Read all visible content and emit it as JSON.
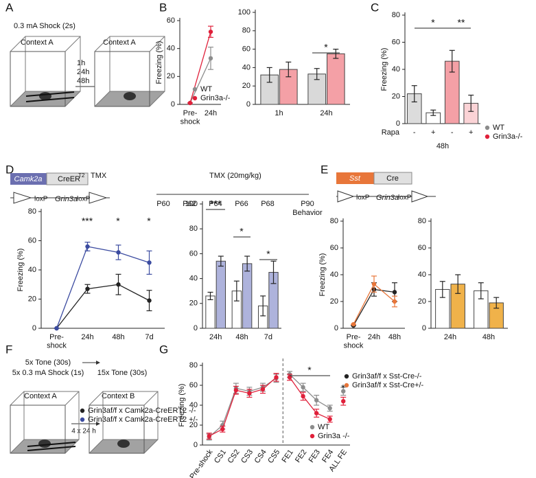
{
  "panel_labels": [
    "A",
    "B",
    "C",
    "D",
    "E",
    "F",
    "G"
  ],
  "schematic_a": {
    "shock": "0.3 mA Shock (2s)",
    "context_left": "Context A",
    "context_right": "Context A",
    "times": [
      "1h",
      "24h",
      "48h"
    ]
  },
  "schematic_d": {
    "promoter": "Camk2a",
    "driver": "CreER",
    "driver_sup": "T2",
    "drug": "TMX",
    "loxp_left": "loxP",
    "gene": "Grin3a",
    "loxp_right": "loxP",
    "timeline_title": "TMX (20mg/kg)",
    "days": [
      "P60",
      "P62",
      "P64",
      "P66",
      "P68",
      "P90"
    ],
    "end": "Behavior"
  },
  "schematic_e": {
    "promoter": "Sst",
    "driver": "Cre",
    "loxp_left": "loxP",
    "gene": "Grin3a",
    "loxp_right": "loxP"
  },
  "schematic_f": {
    "training_tone": "5x Tone (30s)",
    "training_shock": "5x 0.3 mA Shock (1s)",
    "test_tone": "15x Tone (30s)",
    "context_left": "Context A",
    "context_right": "Context B",
    "interval": "4 x 24 h"
  },
  "chart_data": [
    {
      "type": "line",
      "ylabel": "Freezing (%)",
      "categories": [
        "Pre-\nshock",
        "24h"
      ],
      "ylim": [
        0,
        60
      ],
      "yticks": [
        0,
        20,
        40,
        60
      ],
      "series": [
        {
          "name": "WT",
          "color": "#8c8c8c",
          "values": [
            1,
            33
          ],
          "errors": [
            0,
            8
          ]
        },
        {
          "name": "Grin3a-/-",
          "color": "#e0203a",
          "values": [
            1,
            52
          ],
          "errors": [
            0,
            4
          ]
        }
      ]
    },
    {
      "type": "bar",
      "categories": [
        "1h",
        "24h"
      ],
      "ylim": [
        0,
        100
      ],
      "yticks": [
        0,
        20,
        40,
        60,
        80,
        100
      ],
      "series": [
        {
          "color": "#d9d9d9",
          "values": [
            32,
            33
          ],
          "errors": [
            8,
            6
          ]
        },
        {
          "color": "#f4a0a6",
          "values": [
            38,
            55
          ],
          "errors": [
            8,
            5
          ]
        }
      ],
      "annotations": [
        "*"
      ]
    },
    {
      "type": "bar",
      "ylabel": "Freezing (%)",
      "categories": [
        "-",
        "+",
        "-",
        "+"
      ],
      "values": [
        22,
        8,
        46,
        15
      ],
      "errors": [
        6,
        2,
        8,
        6
      ],
      "colors": [
        "#dcdcdc",
        "#ffffff",
        "#f4a0a6",
        "#fbd3d6"
      ],
      "ylim": [
        0,
        80
      ],
      "yticks": [
        0,
        20,
        40,
        60,
        80
      ],
      "x_title": "Rapa",
      "group_label": "48h",
      "legend": [
        {
          "name": "WT",
          "color": "#8c8c8c"
        },
        {
          "name": "Grin3a-/-",
          "color": "#e0203a"
        }
      ],
      "annotations": [
        "*",
        "**"
      ]
    },
    {
      "type": "line",
      "ylabel": "Freezing (%)",
      "categories": [
        "Pre-\nshock",
        "24h",
        "48h",
        "7d"
      ],
      "ylim": [
        0,
        80
      ],
      "yticks": [
        0,
        20,
        40,
        60,
        80
      ],
      "series": [
        {
          "name": "Grin3af/f x Camk2a-CreERT2 -/-",
          "color": "#222222",
          "values": [
            0,
            27,
            30,
            19
          ],
          "errors": [
            0,
            3,
            7,
            7
          ]
        },
        {
          "name": "Grin3af/f x Camk2a-CreERT2 +/-",
          "color": "#3b4ba0",
          "values": [
            0,
            56,
            52,
            45
          ],
          "errors": [
            0,
            3,
            5,
            8
          ]
        }
      ],
      "annotations": [
        "***",
        "*",
        "*"
      ]
    },
    {
      "type": "bar",
      "categories": [
        "24h",
        "48h",
        "7d"
      ],
      "ylim": [
        0,
        100
      ],
      "yticks": [
        0,
        20,
        40,
        60,
        80,
        100
      ],
      "series": [
        {
          "color": "#ffffff",
          "values": [
            26,
            30,
            18
          ],
          "errors": [
            3,
            8,
            8
          ]
        },
        {
          "color": "#aeb3dc",
          "values": [
            54,
            52,
            45
          ],
          "errors": [
            4,
            6,
            9
          ]
        }
      ],
      "annotations": [
        "***",
        "*",
        "*"
      ]
    },
    {
      "type": "line",
      "ylabel": "Freezing (%)",
      "categories": [
        "Pre-\nshock",
        "24h",
        "48h"
      ],
      "ylim": [
        0,
        80
      ],
      "yticks": [
        0,
        20,
        40,
        60,
        80
      ],
      "series": [
        {
          "name": "Grin3af/f x Sst-Cre-/-",
          "color": "#222222",
          "values": [
            2,
            29,
            27
          ],
          "errors": [
            0,
            5,
            7
          ]
        },
        {
          "name": "Grin3af/f x Sst-Cre+/-",
          "color": "#e8763a",
          "values": [
            3,
            33,
            20
          ],
          "errors": [
            0,
            6,
            4
          ]
        }
      ]
    },
    {
      "type": "bar",
      "categories": [
        "24h",
        "48h"
      ],
      "ylim": [
        0,
        80
      ],
      "yticks": [
        0,
        20,
        40,
        60,
        80
      ],
      "series": [
        {
          "color": "#ffffff",
          "values": [
            29,
            28
          ],
          "errors": [
            6,
            6
          ]
        },
        {
          "color": "#f0b24a",
          "values": [
            33,
            19
          ],
          "errors": [
            7,
            4
          ]
        }
      ]
    },
    {
      "type": "line",
      "ylabel": "Freezing (%)",
      "categories": [
        "Pre-shock",
        "CS1",
        "CS2",
        "CS3",
        "CS4",
        "CS5",
        "FE1",
        "FE2",
        "FE3",
        "FE4",
        "ALL FE"
      ],
      "ylim": [
        0,
        80
      ],
      "yticks": [
        0,
        20,
        40,
        60,
        80
      ],
      "series": [
        {
          "name": "WT",
          "color": "#8c8c8c",
          "values": [
            8,
            20,
            57,
            54,
            58,
            67,
            71,
            58,
            45,
            37,
            54
          ],
          "errors": [
            3,
            4,
            5,
            4,
            4,
            4,
            3,
            4,
            5,
            3,
            4
          ]
        },
        {
          "name": "Grin3a -/-",
          "color": "#e0203a",
          "values": [
            9,
            16,
            55,
            52,
            56,
            68,
            68,
            49,
            32,
            26,
            44
          ],
          "errors": [
            3,
            3,
            4,
            4,
            4,
            4,
            3,
            4,
            4,
            3,
            4
          ]
        }
      ],
      "annotations": [
        "*",
        "*"
      ]
    }
  ]
}
